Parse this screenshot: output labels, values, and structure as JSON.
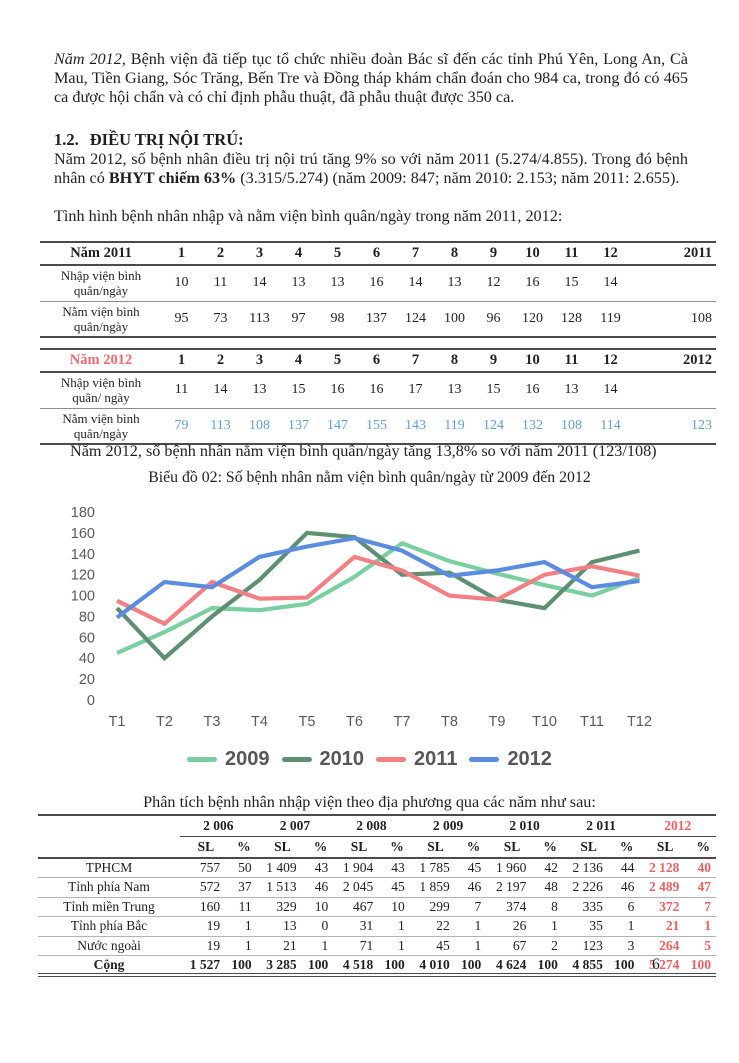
{
  "document": {
    "para1": {
      "lead_italic": "Năm 2012,",
      "rest": " Bệnh viện đã tiếp tục tổ chức nhiều đoàn Bác sĩ đến các tỉnh Phú Yên, Long An, Cà Mau, Tiền Giang, Sóc Trăng, Bến Tre và Đồng tháp khám chẩn đoán cho 984 ca, trong đó có 465 ca được hội chẩn và có chỉ định phẫu thuật, đã phẫu thuật được 350 ca."
    },
    "section_heading": {
      "num": "1.2.",
      "text": "ĐIỀU TRỊ NỘI TRÚ:"
    },
    "para2": {
      "pre": "Năm 2012, số bệnh nhân điều trị nội trú tăng 9% so với năm 2011 (5.274/4.855). Trong đó bệnh nhân có ",
      "bold": "BHYT chiếm 63%",
      "post": " (3.315/5.274) (năm 2009: 847; năm 2010: 2.153; năm 2011: 2.655)."
    },
    "intro_line": "Tình hình bệnh nhân nhập và nằm viện bình quân/ngày trong năm 2011, 2012:",
    "note_after_tables": "Năm 2012, số bệnh nhân nằm viện bình quân/ngày tăng 13,8% so với năm 2011 (123/108)",
    "chart_caption": "Biểu đồ 02: Số bệnh nhân nằm viện bình quân/ngày từ 2009 đến 2012",
    "analysis_title": "Phân tích bệnh nhân nhập viện theo địa phương qua các năm như sau:",
    "page_number": "6"
  },
  "colors": {
    "accent_red": "#ee5f60",
    "table_header_red": "#ee6a6d",
    "value_blue": "#5f9fd6",
    "series_2009": "#79cf9f",
    "series_2010": "#5e8f71",
    "series_2011": "#f28082",
    "series_2012": "#5c8cdd"
  },
  "table_2011": {
    "title": "Năm 2011",
    "header_color": "#1f1f1f",
    "months": [
      "1",
      "2",
      "3",
      "4",
      "5",
      "6",
      "7",
      "8",
      "9",
      "10",
      "11",
      "12"
    ],
    "total_label": "2011",
    "rows": [
      {
        "label": "Nhập viện bình quân/ngày",
        "values": [
          "10",
          "11",
          "14",
          "13",
          "13",
          "16",
          "14",
          "13",
          "12",
          "16",
          "15",
          "14",
          ""
        ]
      },
      {
        "label": "Nằm viện bình quân/ngày",
        "values": [
          "95",
          "73",
          "113",
          "97",
          "98",
          "137",
          "124",
          "100",
          "96",
          "120",
          "128",
          "119",
          "108"
        ]
      }
    ]
  },
  "table_2012": {
    "title": "Năm 2012",
    "header_color": "#ee6a6d",
    "months": [
      "1",
      "2",
      "3",
      "4",
      "5",
      "6",
      "7",
      "8",
      "9",
      "10",
      "11",
      "12"
    ],
    "total_label": "2012",
    "rows": [
      {
        "label": "Nhập viện bình quân/ ngày",
        "values": [
          "11",
          "14",
          "13",
          "15",
          "16",
          "16",
          "17",
          "13",
          "15",
          "16",
          "13",
          "14",
          ""
        ]
      },
      {
        "label": "Nằm viện bình quân/ngày",
        "value_color": "#5f9fd6",
        "values": [
          "79",
          "113",
          "108",
          "137",
          "147",
          "155",
          "143",
          "119",
          "124",
          "132",
          "108",
          "114",
          "123"
        ]
      }
    ]
  },
  "chart_data": {
    "type": "line",
    "title": "Biểu đồ 02: Số bệnh nhân nằm viện bình quân/ngày từ 2009 đến 2012",
    "x": [
      "T1",
      "T2",
      "T3",
      "T4",
      "T5",
      "T6",
      "T7",
      "T8",
      "T9",
      "T10",
      "T11",
      "T12"
    ],
    "series": [
      {
        "name": "2009",
        "color": "#79cf9f",
        "values": [
          45,
          65,
          88,
          86,
          92,
          118,
          150,
          133,
          121,
          110,
          100,
          117
        ]
      },
      {
        "name": "2010",
        "color": "#5e8f71",
        "values": [
          88,
          40,
          80,
          115,
          160,
          156,
          120,
          122,
          96,
          88,
          132,
          143
        ]
      },
      {
        "name": "2011",
        "color": "#f28082",
        "values": [
          95,
          73,
          113,
          97,
          98,
          137,
          124,
          100,
          96,
          120,
          128,
          119
        ]
      },
      {
        "name": "2012",
        "color": "#5c8cdd",
        "values": [
          79,
          113,
          108,
          137,
          147,
          155,
          143,
          119,
          124,
          132,
          108,
          114
        ]
      }
    ],
    "ylim": [
      0,
      180
    ],
    "yticks": [
      180,
      160,
      140,
      120,
      100,
      80,
      60,
      40,
      20,
      0
    ],
    "grid": false,
    "legend_position": "bottom"
  },
  "region_table": {
    "years": [
      "2 006",
      "2 007",
      "2 008",
      "2 009",
      "2 010",
      "2 011",
      "2012"
    ],
    "sub": [
      "SL",
      "%"
    ],
    "rows": [
      {
        "label": "TPHCM",
        "values": [
          [
            "757",
            "50"
          ],
          [
            "1 409",
            "43"
          ],
          [
            "1 904",
            "43"
          ],
          [
            "1 785",
            "45"
          ],
          [
            "1 960",
            "42"
          ],
          [
            "2 136",
            "44"
          ],
          [
            "2 128",
            "40"
          ]
        ]
      },
      {
        "label": "Tỉnh phía Nam",
        "values": [
          [
            "572",
            "37"
          ],
          [
            "1 513",
            "46"
          ],
          [
            "2 045",
            "45"
          ],
          [
            "1 859",
            "46"
          ],
          [
            "2 197",
            "48"
          ],
          [
            "2 226",
            "46"
          ],
          [
            "2 489",
            "47"
          ]
        ]
      },
      {
        "label": "Tỉnh miền Trung",
        "values": [
          [
            "160",
            "11"
          ],
          [
            "329",
            "10"
          ],
          [
            "467",
            "10"
          ],
          [
            "299",
            "7"
          ],
          [
            "374",
            "8"
          ],
          [
            "335",
            "6"
          ],
          [
            "372",
            "7"
          ]
        ]
      },
      {
        "label": "Tỉnh phía Bắc",
        "values": [
          [
            "19",
            "1"
          ],
          [
            "13",
            "0"
          ],
          [
            "31",
            "1"
          ],
          [
            "22",
            "1"
          ],
          [
            "26",
            "1"
          ],
          [
            "35",
            "1"
          ],
          [
            "21",
            "1"
          ]
        ]
      },
      {
        "label": "Nước ngoài",
        "values": [
          [
            "19",
            "1"
          ],
          [
            "21",
            "1"
          ],
          [
            "71",
            "1"
          ],
          [
            "45",
            "1"
          ],
          [
            "67",
            "2"
          ],
          [
            "123",
            "3"
          ],
          [
            "264",
            "5"
          ]
        ]
      },
      {
        "label": "Cộng",
        "bold": true,
        "values": [
          [
            "1 527",
            "100"
          ],
          [
            "3 285",
            "100"
          ],
          [
            "4 518",
            "100"
          ],
          [
            "4 010",
            "100"
          ],
          [
            "4 624",
            "100"
          ],
          [
            "4 855",
            "100"
          ],
          [
            "5 274",
            "100"
          ]
        ]
      }
    ]
  }
}
